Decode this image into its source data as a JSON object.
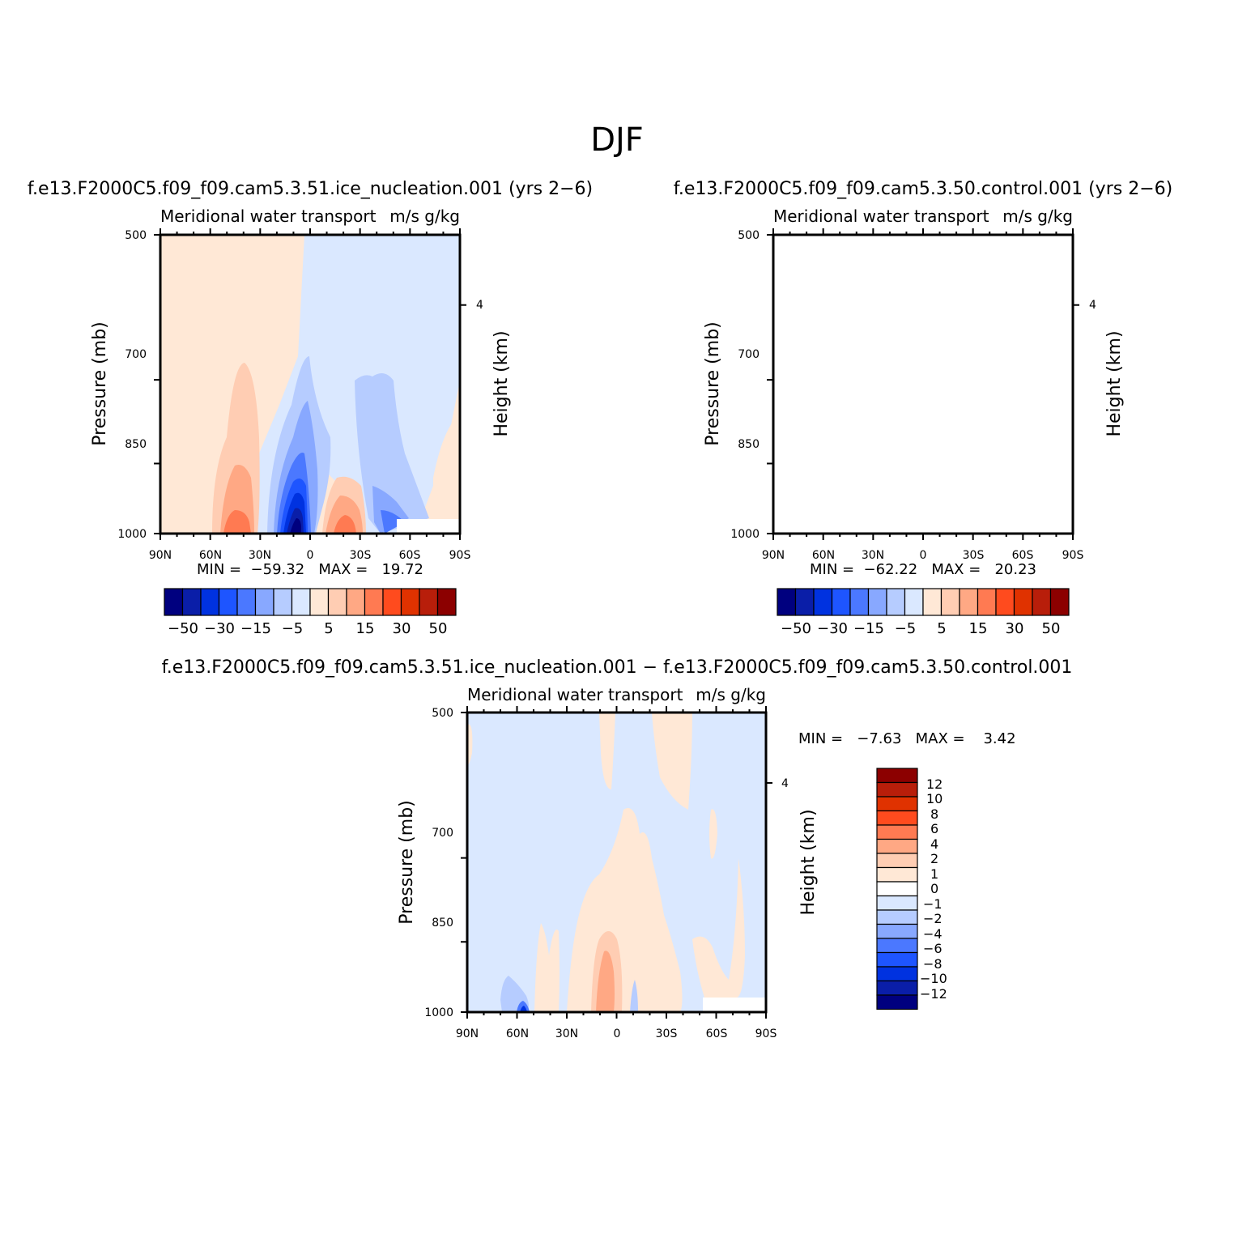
{
  "page_title": "DJF",
  "colors": {
    "main_levels": [
      "#00007f",
      "#0a1ea8",
      "#0032e0",
      "#1e55ff",
      "#4b78ff",
      "#88a8ff",
      "#b6ccff",
      "#dae8ff",
      "#ffe8d6",
      "#ffcdb3",
      "#ffa884",
      "#ff7a52",
      "#ff4b1e",
      "#e03200",
      "#b81e0a",
      "#8c0000"
    ],
    "diff_levels_top_to_bottom": [
      "#8c0000",
      "#b81e0a",
      "#e03200",
      "#ff4b1e",
      "#ff7a52",
      "#ffa884",
      "#ffcdb3",
      "#ffe8d6",
      "#ffffff",
      "#dae8ff",
      "#b6ccff",
      "#88a8ff",
      "#4b78ff",
      "#1e55ff",
      "#0032e0",
      "#0a1ea8",
      "#00007f"
    ]
  },
  "chart_data": [
    {
      "type": "heatmap",
      "case_title": "f.e13.F2000C5.f09_f09.cam5.3.51.ice_nucleation.001 (yrs 2−6)",
      "left_string": "Meridional water transport",
      "right_string": "m/s g/kg",
      "xticks": [
        "90N",
        "60N",
        "30N",
        "0",
        "30S",
        "60S",
        "90S"
      ],
      "yticks": [
        "500",
        "700",
        "850",
        "1000"
      ],
      "ytick_values": [
        500,
        700,
        850,
        1000
      ],
      "xlim": [
        90,
        -90
      ],
      "ylim": [
        1000,
        500
      ],
      "right_ticks": [
        "4"
      ],
      "ylabel": "Pressure (mb)",
      "y2label": "Height (km)",
      "stats": "MIN =  −59.32   MAX =   19.72",
      "colorbar_labels": [
        "−50",
        "−30",
        "−15",
        "−5",
        "5",
        "15",
        "30",
        "50"
      ]
    },
    {
      "type": "heatmap",
      "case_title": "f.e13.F2000C5.f09_f09.cam5.3.50.control.001 (yrs 2−6)",
      "left_string": "Meridional water transport",
      "right_string": "m/s g/kg",
      "xticks": [
        "90N",
        "60N",
        "30N",
        "0",
        "30S",
        "60S",
        "90S"
      ],
      "yticks": [
        "500",
        "700",
        "850",
        "1000"
      ],
      "ytick_values": [
        500,
        700,
        850,
        1000
      ],
      "xlim": [
        90,
        -90
      ],
      "ylim": [
        1000,
        500
      ],
      "right_ticks": [
        "4"
      ],
      "ylabel": "Pressure (mb)",
      "y2label": "Height (km)",
      "stats": "MIN =  −62.22   MAX =   20.23",
      "colorbar_labels": [
        "−50",
        "−30",
        "−15",
        "−5",
        "5",
        "15",
        "30",
        "50"
      ]
    },
    {
      "type": "heatmap",
      "case_title": "f.e13.F2000C5.f09_f09.cam5.3.51.ice_nucleation.001 − f.e13.F2000C5.f09_f09.cam5.3.50.control.001",
      "left_string": "Meridional water transport",
      "right_string": "m/s g/kg",
      "xticks": [
        "90N",
        "60N",
        "30N",
        "0",
        "30S",
        "60S",
        "90S"
      ],
      "yticks": [
        "500",
        "700",
        "850",
        "1000"
      ],
      "ytick_values": [
        500,
        700,
        850,
        1000
      ],
      "xlim": [
        90,
        -90
      ],
      "ylim": [
        1000,
        500
      ],
      "right_ticks": [
        "4"
      ],
      "ylabel": "Pressure (mb)",
      "y2label": "Height (km)",
      "stats": "MIN =   −7.63   MAX =    3.42",
      "colorbar_labels": [
        "12",
        "10",
        "8",
        "6",
        "4",
        "2",
        "1",
        "0",
        "−1",
        "−2",
        "−4",
        "−6",
        "−8",
        "−10",
        "−12"
      ]
    }
  ]
}
